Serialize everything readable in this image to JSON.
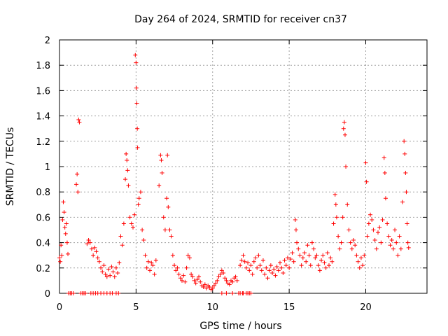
{
  "chart_data": {
    "type": "scatter",
    "title": "Day 264 of 2024, SRMTID for receiver cn37",
    "xlabel": "GPS time / hours",
    "ylabel": "SRMTID / TECUs",
    "xlim": [
      0,
      24
    ],
    "ylim": [
      0,
      2
    ],
    "grid": true,
    "marker": "+",
    "xticks": [
      0,
      5,
      10,
      15,
      20
    ],
    "xtick_labels": [
      "0",
      "5",
      "10",
      "15",
      "20"
    ],
    "yticks": [
      0,
      0.2,
      0.4,
      0.6,
      0.8,
      1,
      1.2,
      1.4,
      1.6,
      1.8,
      2
    ],
    "ytick_labels": [
      "0",
      "0.2",
      "0.4",
      "0.6",
      "0.8",
      "1",
      "1.2",
      "1.4",
      "1.6",
      "1.8",
      "2"
    ],
    "series": [
      {
        "name": "SRMTID",
        "color": "#ff0000",
        "points": [
          [
            0.0,
            0.28
          ],
          [
            0.05,
            0.25
          ],
          [
            0.1,
            0.38
          ],
          [
            0.15,
            0.3
          ],
          [
            0.2,
            0.58
          ],
          [
            0.25,
            0.72
          ],
          [
            0.3,
            0.64
          ],
          [
            0.35,
            0.52
          ],
          [
            0.4,
            0.47
          ],
          [
            0.45,
            0.55
          ],
          [
            0.5,
            0.4
          ],
          [
            0.55,
            0.31
          ],
          [
            0.6,
            0.0
          ],
          [
            0.7,
            0.0
          ],
          [
            0.8,
            0.0
          ],
          [
            0.9,
            0.0
          ],
          [
            1.1,
            0.86
          ],
          [
            1.15,
            0.94
          ],
          [
            1.2,
            0.8
          ],
          [
            1.25,
            1.37
          ],
          [
            1.3,
            1.35
          ],
          [
            1.4,
            0.0
          ],
          [
            1.5,
            0.0
          ],
          [
            1.6,
            0.0
          ],
          [
            1.7,
            0.0
          ],
          [
            1.8,
            0.39
          ],
          [
            1.9,
            0.42
          ],
          [
            2.0,
            0.4
          ],
          [
            2.1,
            0.35
          ],
          [
            2.2,
            0.3
          ],
          [
            2.3,
            0.36
          ],
          [
            2.4,
            0.33
          ],
          [
            2.5,
            0.28
          ],
          [
            2.6,
            0.25
          ],
          [
            2.7,
            0.2
          ],
          [
            2.8,
            0.17
          ],
          [
            2.9,
            0.22
          ],
          [
            3.0,
            0.15
          ],
          [
            3.1,
            0.13
          ],
          [
            3.2,
            0.19
          ],
          [
            3.3,
            0.14
          ],
          [
            3.4,
            0.21
          ],
          [
            3.5,
            0.17
          ],
          [
            3.6,
            0.13
          ],
          [
            3.7,
            0.2
          ],
          [
            3.8,
            0.16
          ],
          [
            3.9,
            0.24
          ],
          [
            4.0,
            0.45
          ],
          [
            4.1,
            0.38
          ],
          [
            4.2,
            0.55
          ],
          [
            4.3,
            0.9
          ],
          [
            4.35,
            1.1
          ],
          [
            4.4,
            1.05
          ],
          [
            4.45,
            0.97
          ],
          [
            4.5,
            0.85
          ],
          [
            4.6,
            0.6
          ],
          [
            4.7,
            0.55
          ],
          [
            4.8,
            0.52
          ],
          [
            4.9,
            0.62
          ],
          [
            4.95,
            1.88
          ],
          [
            5.0,
            1.82
          ],
          [
            5.02,
            1.62
          ],
          [
            5.05,
            1.5
          ],
          [
            5.08,
            1.3
          ],
          [
            5.1,
            1.15
          ],
          [
            5.15,
            0.7
          ],
          [
            5.2,
            0.75
          ],
          [
            5.3,
            0.8
          ],
          [
            5.4,
            0.5
          ],
          [
            5.5,
            0.42
          ],
          [
            5.6,
            0.3
          ],
          [
            5.7,
            0.2
          ],
          [
            5.8,
            0.25
          ],
          [
            5.9,
            0.18
          ],
          [
            6.0,
            0.24
          ],
          [
            6.1,
            0.22
          ],
          [
            6.2,
            0.15
          ],
          [
            6.3,
            0.26
          ],
          [
            6.5,
            0.85
          ],
          [
            6.6,
            1.09
          ],
          [
            6.65,
            1.05
          ],
          [
            6.7,
            0.95
          ],
          [
            6.8,
            0.6
          ],
          [
            6.9,
            0.5
          ],
          [
            7.0,
            0.75
          ],
          [
            7.05,
            1.09
          ],
          [
            7.1,
            0.68
          ],
          [
            7.2,
            0.5
          ],
          [
            7.3,
            0.45
          ],
          [
            7.4,
            0.3
          ],
          [
            7.5,
            0.22
          ],
          [
            7.6,
            0.18
          ],
          [
            7.7,
            0.2
          ],
          [
            7.8,
            0.15
          ],
          [
            7.9,
            0.12
          ],
          [
            8.0,
            0.1
          ],
          [
            8.1,
            0.14
          ],
          [
            8.2,
            0.09
          ],
          [
            8.3,
            0.2
          ],
          [
            8.4,
            0.3
          ],
          [
            8.5,
            0.28
          ],
          [
            8.6,
            0.15
          ],
          [
            8.7,
            0.13
          ],
          [
            8.8,
            0.1
          ],
          [
            8.9,
            0.08
          ],
          [
            9.0,
            0.11
          ],
          [
            9.1,
            0.13
          ],
          [
            9.2,
            0.09
          ],
          [
            9.3,
            0.06
          ],
          [
            9.4,
            0.05
          ],
          [
            9.5,
            0.07
          ],
          [
            9.6,
            0.04
          ],
          [
            9.7,
            0.06
          ],
          [
            9.8,
            0.05
          ],
          [
            9.9,
            0.03
          ],
          [
            10.0,
            0.04
          ],
          [
            10.1,
            0.06
          ],
          [
            10.2,
            0.08
          ],
          [
            10.3,
            0.1
          ],
          [
            10.4,
            0.13
          ],
          [
            10.5,
            0.15
          ],
          [
            10.6,
            0.18
          ],
          [
            10.7,
            0.16
          ],
          [
            10.8,
            0.12
          ],
          [
            10.9,
            0.1
          ],
          [
            11.0,
            0.08
          ],
          [
            11.1,
            0.07
          ],
          [
            11.2,
            0.1
          ],
          [
            11.3,
            0.09
          ],
          [
            11.4,
            0.12
          ],
          [
            11.5,
            0.13
          ],
          [
            11.6,
            0.1
          ],
          [
            11.7,
            0.0
          ],
          [
            11.8,
            0.0
          ],
          [
            12.0,
            0.0
          ],
          [
            12.3,
            0.0
          ],
          [
            12.5,
            0.0
          ],
          [
            12.2,
            0.0
          ],
          [
            10.6,
            0.0
          ],
          [
            10.9,
            0.0
          ],
          [
            11.8,
            0.22
          ],
          [
            11.9,
            0.26
          ],
          [
            12.0,
            0.3
          ],
          [
            12.1,
            0.25
          ],
          [
            12.2,
            0.2
          ],
          [
            12.3,
            0.24
          ],
          [
            12.4,
            0.18
          ],
          [
            12.5,
            0.22
          ],
          [
            12.6,
            0.15
          ],
          [
            12.7,
            0.25
          ],
          [
            12.8,
            0.28
          ],
          [
            12.9,
            0.2
          ],
          [
            13.0,
            0.3
          ],
          [
            13.1,
            0.22
          ],
          [
            13.2,
            0.18
          ],
          [
            13.3,
            0.26
          ],
          [
            13.4,
            0.15
          ],
          [
            13.5,
            0.2
          ],
          [
            13.6,
            0.12
          ],
          [
            13.7,
            0.18
          ],
          [
            13.8,
            0.22
          ],
          [
            13.9,
            0.16
          ],
          [
            14.0,
            0.19
          ],
          [
            14.1,
            0.14
          ],
          [
            14.2,
            0.21
          ],
          [
            14.3,
            0.18
          ],
          [
            14.4,
            0.24
          ],
          [
            14.5,
            0.2
          ],
          [
            14.6,
            0.16
          ],
          [
            14.7,
            0.26
          ],
          [
            14.8,
            0.22
          ],
          [
            14.9,
            0.28
          ],
          [
            15.0,
            0.2
          ],
          [
            15.1,
            0.27
          ],
          [
            15.2,
            0.32
          ],
          [
            15.3,
            0.25
          ],
          [
            15.4,
            0.58
          ],
          [
            15.45,
            0.5
          ],
          [
            15.5,
            0.4
          ],
          [
            15.6,
            0.35
          ],
          [
            15.7,
            0.3
          ],
          [
            15.8,
            0.22
          ],
          [
            15.9,
            0.28
          ],
          [
            16.0,
            0.32
          ],
          [
            16.1,
            0.25
          ],
          [
            16.2,
            0.38
          ],
          [
            16.3,
            0.3
          ],
          [
            16.4,
            0.22
          ],
          [
            16.5,
            0.4
          ],
          [
            16.6,
            0.35
          ],
          [
            16.7,
            0.28
          ],
          [
            16.8,
            0.3
          ],
          [
            16.9,
            0.22
          ],
          [
            17.0,
            0.18
          ],
          [
            17.1,
            0.26
          ],
          [
            17.2,
            0.3
          ],
          [
            17.3,
            0.24
          ],
          [
            17.4,
            0.2
          ],
          [
            17.5,
            0.32
          ],
          [
            17.6,
            0.22
          ],
          [
            17.7,
            0.28
          ],
          [
            17.8,
            0.25
          ],
          [
            17.9,
            0.55
          ],
          [
            18.0,
            0.78
          ],
          [
            18.05,
            0.7
          ],
          [
            18.1,
            0.6
          ],
          [
            18.2,
            0.45
          ],
          [
            18.3,
            0.35
          ],
          [
            18.4,
            0.4
          ],
          [
            18.5,
            0.6
          ],
          [
            18.55,
            1.3
          ],
          [
            18.6,
            1.35
          ],
          [
            18.65,
            1.25
          ],
          [
            18.7,
            1.0
          ],
          [
            18.8,
            0.7
          ],
          [
            18.9,
            0.5
          ],
          [
            19.0,
            0.4
          ],
          [
            19.1,
            0.35
          ],
          [
            19.2,
            0.42
          ],
          [
            19.3,
            0.38
          ],
          [
            19.4,
            0.3
          ],
          [
            19.5,
            0.25
          ],
          [
            19.6,
            0.2
          ],
          [
            19.7,
            0.28
          ],
          [
            19.8,
            0.22
          ],
          [
            19.9,
            0.3
          ],
          [
            20.0,
            1.03
          ],
          [
            20.05,
            0.88
          ],
          [
            20.1,
            0.45
          ],
          [
            20.2,
            0.55
          ],
          [
            20.3,
            0.62
          ],
          [
            20.4,
            0.58
          ],
          [
            20.5,
            0.5
          ],
          [
            20.6,
            0.42
          ],
          [
            20.7,
            0.35
          ],
          [
            20.8,
            0.48
          ],
          [
            20.9,
            0.52
          ],
          [
            21.0,
            0.4
          ],
          [
            21.1,
            0.58
          ],
          [
            21.2,
            1.07
          ],
          [
            21.25,
            0.95
          ],
          [
            21.3,
            0.75
          ],
          [
            21.4,
            0.55
          ],
          [
            21.5,
            0.45
          ],
          [
            21.6,
            0.38
          ],
          [
            21.7,
            0.42
          ],
          [
            21.8,
            0.35
          ],
          [
            21.9,
            0.5
          ],
          [
            22.0,
            0.4
          ],
          [
            22.1,
            0.3
          ],
          [
            22.2,
            0.45
          ],
          [
            22.3,
            0.35
          ],
          [
            22.4,
            0.72
          ],
          [
            22.5,
            1.2
          ],
          [
            22.55,
            1.1
          ],
          [
            22.6,
            0.95
          ],
          [
            22.65,
            0.8
          ],
          [
            22.7,
            0.55
          ],
          [
            22.75,
            0.4
          ],
          [
            22.8,
            0.36
          ],
          [
            2.05,
            0.0
          ],
          [
            2.2,
            0.0
          ],
          [
            2.35,
            0.0
          ],
          [
            2.5,
            0.0
          ],
          [
            2.7,
            0.0
          ],
          [
            2.9,
            0.0
          ],
          [
            3.1,
            0.0
          ],
          [
            3.3,
            0.0
          ],
          [
            3.45,
            0.0
          ],
          [
            3.7,
            0.0
          ],
          [
            3.85,
            0.0
          ],
          [
            11.3,
            0.0
          ],
          [
            11.95,
            0.0
          ],
          [
            12.4,
            0.0
          ]
        ]
      }
    ]
  }
}
